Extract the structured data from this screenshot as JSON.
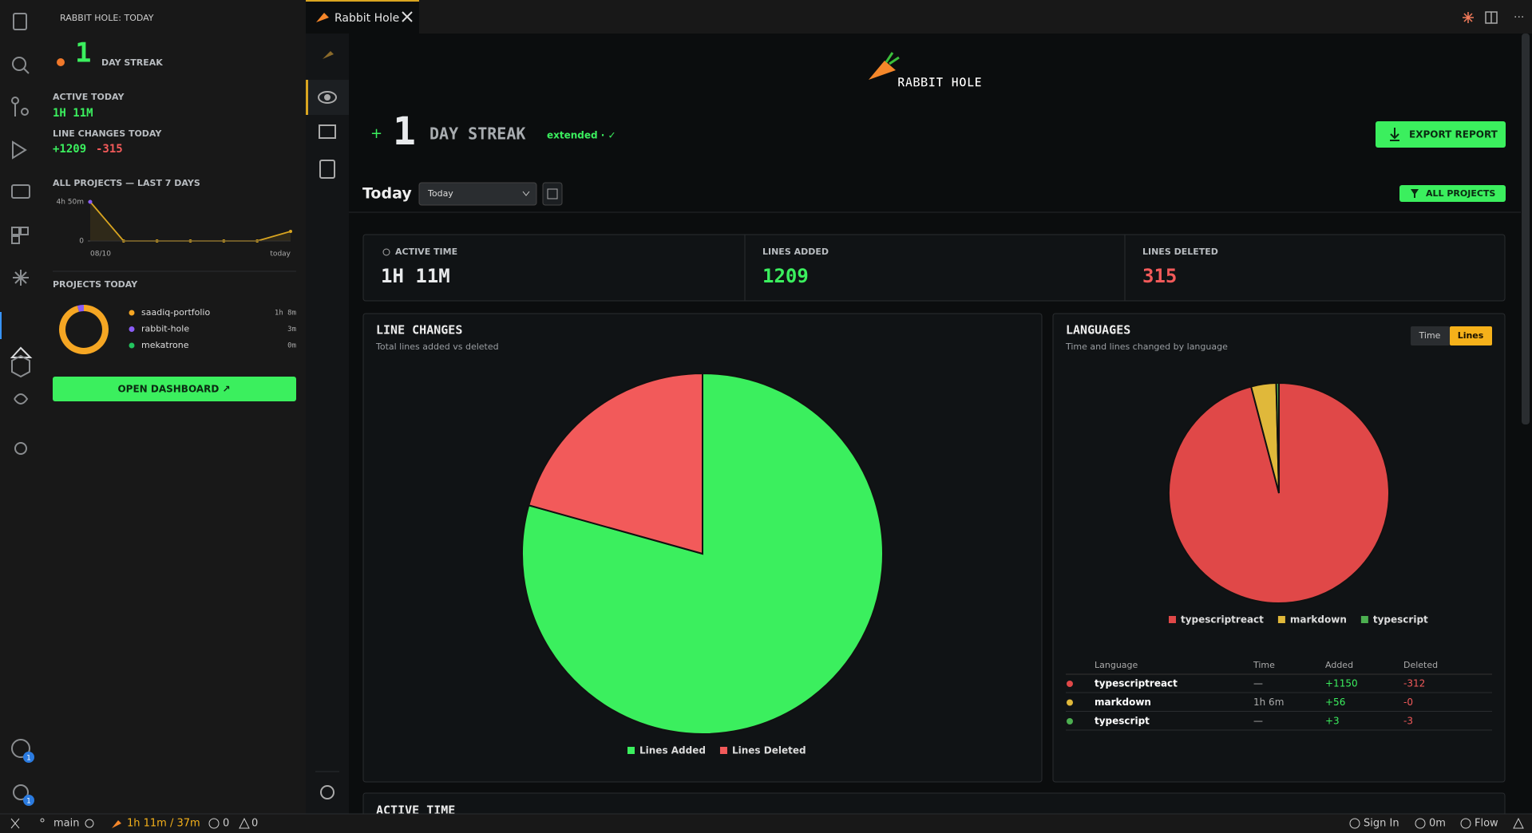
{
  "sidebar": {
    "header": "RABBIT HOLE: TODAY",
    "streak_number": "1",
    "streak_label": "DAY STREAK",
    "active_label": "ACTIVE TODAY",
    "active_value": "1H 11M",
    "changes_label": "LINE CHANGES TODAY",
    "added": "+1209",
    "deleted": "-315",
    "button": "OPEN DASHBOARD ↗",
    "badges": [
      "1",
      "1"
    ]
  },
  "tab": {
    "title": "Rabbit Hole"
  },
  "dashboard": {
    "logo": "RABBIT HOLE",
    "streak_number": "1",
    "streak_label": "DAY STREAK",
    "streak_note": "extended · ✓",
    "export": "EXPORT REPORT",
    "period_title": "Today",
    "period_select": "Today",
    "filter": "ALL PROJECTS",
    "stats": [
      {
        "label": "ACTIVE TIME",
        "value": "1H 11M"
      },
      {
        "label": "LINES ADDED",
        "value": "1209"
      },
      {
        "label": "LINES DELETED",
        "value": "315"
      }
    ],
    "toggle": [
      "Time",
      "Lines"
    ],
    "table": {
      "header": [
        "Language",
        "Time",
        "Added",
        "Deleted"
      ],
      "rows": [
        [
          "typescriptreact",
          "—",
          "+1150",
          "-312"
        ],
        [
          "markdown",
          "1h 6m",
          "+56",
          "-0"
        ],
        [
          "typescript",
          "—",
          "+3",
          "-3"
        ]
      ]
    },
    "next_section": "ACTIVE TIME"
  },
  "status_bar": {
    "branch": "main",
    "timer": "1h 11m / 37m",
    "errors": "0",
    "warnings": "0",
    "sign_in": "Sign In",
    "history": "0m",
    "flow": "Flow"
  },
  "chart_data": [
    {
      "type": "line",
      "title": "ALL PROJECTS — LAST 7 DAYS",
      "categories": [
        "08/10",
        null,
        null,
        null,
        null,
        null,
        "today"
      ],
      "series": [
        {
          "name": "All projects",
          "color": "#d9a520",
          "values": [
            290,
            0,
            0,
            0,
            0,
            0,
            71
          ]
        }
      ],
      "ylim": [
        0,
        290
      ],
      "yticks": [
        {
          "value": 290,
          "label": "4h 50m"
        },
        0
      ]
    },
    {
      "type": "donut",
      "title": "PROJECTS TODAY",
      "categories": [
        "saadiq-portfolio",
        "rabbit-hole",
        "mekatrone"
      ],
      "values": [
        68,
        3,
        0
      ],
      "value_labels": [
        "1h 8m",
        "3m",
        "0m"
      ],
      "colors": [
        "#f5a623",
        "#8b5cf6",
        "#22c55e"
      ]
    },
    {
      "type": "pie",
      "title": "LINE CHANGES",
      "subtitle": "Total lines added vs deleted",
      "categories": [
        "Lines Added",
        "Lines Deleted"
      ],
      "values": [
        1209,
        315
      ],
      "colors": [
        "#3bef5e",
        "#f25a5a"
      ]
    },
    {
      "type": "pie",
      "title": "LANGUAGES",
      "subtitle": "Time and lines changed by language",
      "categories": [
        "typescriptreact",
        "markdown",
        "typescript"
      ],
      "values": [
        1462,
        56,
        6
      ],
      "colors": [
        "#e04848",
        "#e0b83a",
        "#4caf50"
      ]
    }
  ]
}
